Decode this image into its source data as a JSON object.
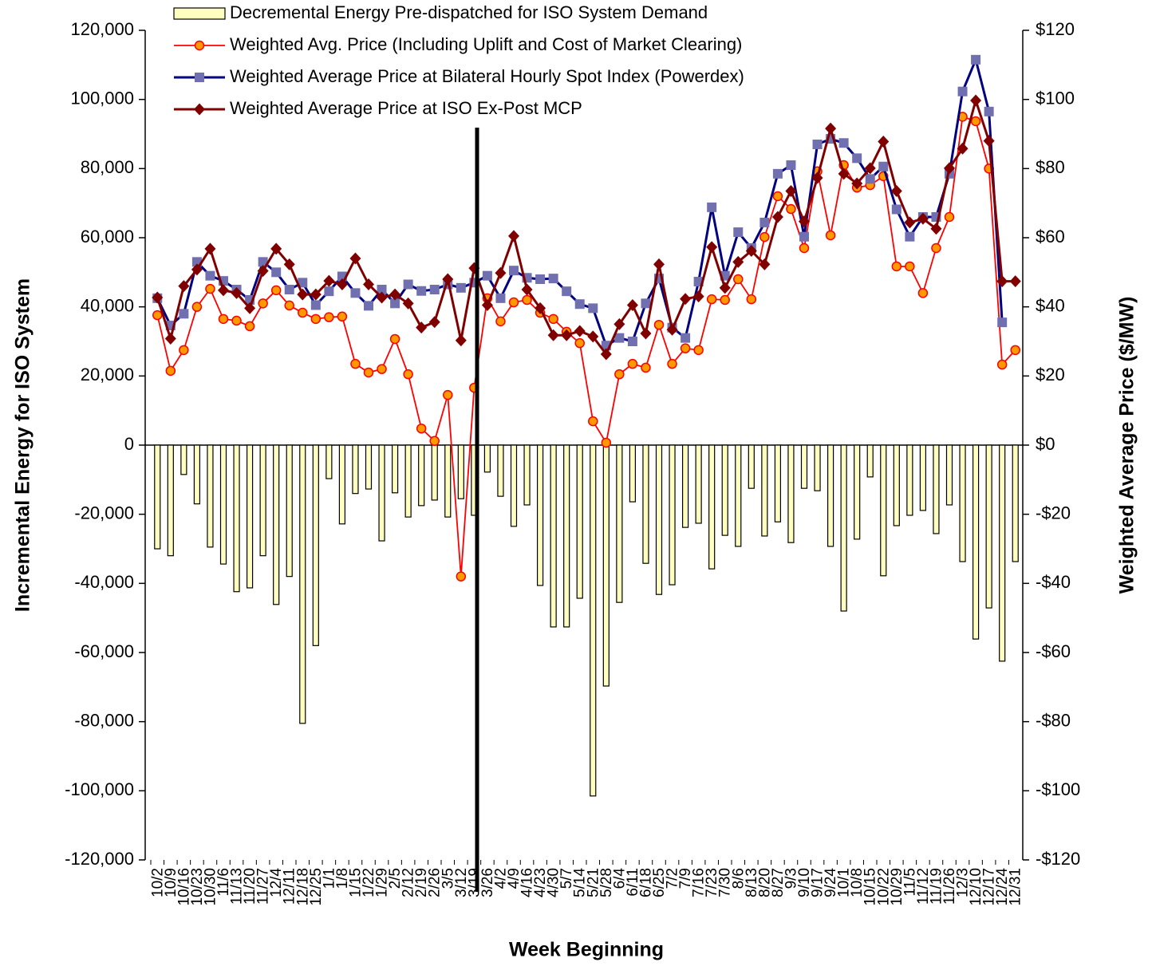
{
  "chart_data": {
    "type": "bar",
    "xlabel": "Week Beginning",
    "ylabel": "Incremental Energy for ISO System",
    "y2label": "Weighted Average Price ($/MW)",
    "categories": [
      "10/2",
      "10/9",
      "10/16",
      "10/23",
      "10/30",
      "11/6",
      "11/13",
      "11/20",
      "11/27",
      "12/4",
      "12/11",
      "12/18",
      "12/25",
      "1/1",
      "1/8",
      "1/15",
      "1/22",
      "1/29",
      "2/5",
      "2/12",
      "2/19",
      "2/26",
      "3/5",
      "3/12",
      "3/19",
      "3/26",
      "4/2",
      "4/9",
      "4/16",
      "4/23",
      "4/30",
      "5/7",
      "5/14",
      "5/21",
      "5/28",
      "6/4",
      "6/11",
      "6/18",
      "6/25",
      "7/2",
      "7/9",
      "7/16",
      "7/23",
      "7/30",
      "8/6",
      "8/13",
      "8/20",
      "8/27",
      "9/3",
      "9/10",
      "9/17",
      "9/24",
      "10/1",
      "10/8",
      "10/15",
      "10/22",
      "10/29",
      "11/5",
      "11/12",
      "11/19",
      "11/26",
      "12/3",
      "12/10",
      "12/17",
      "12/24",
      "12/31"
    ],
    "ylim": [
      -120000,
      120000
    ],
    "yticks": [
      {
        "value": 120000,
        "label": "120,000"
      },
      {
        "value": 100000,
        "label": "100,000"
      },
      {
        "value": 80000,
        "label": "80,000"
      },
      {
        "value": 60000,
        "label": "60,000"
      },
      {
        "value": 40000,
        "label": "40,000"
      },
      {
        "value": 20000,
        "label": "20,000"
      },
      0,
      {
        "value": -20000,
        "label": "-20,000"
      },
      {
        "value": -40000,
        "label": "-40,000"
      },
      {
        "value": -60000,
        "label": "-60,000"
      },
      {
        "value": -80000,
        "label": "-80,000"
      },
      {
        "value": -100000,
        "label": "-100,000"
      },
      {
        "value": -120000,
        "label": "-120,000"
      }
    ],
    "y2lim": [
      -120,
      120
    ],
    "y2ticks": [
      {
        "value": 120,
        "label": "$120"
      },
      {
        "value": 100,
        "label": "$100"
      },
      {
        "value": 80,
        "label": "$80"
      },
      {
        "value": 60,
        "label": "$60"
      },
      {
        "value": 40,
        "label": "$40"
      },
      {
        "value": 20,
        "label": "$20"
      },
      {
        "value": 0,
        "label": "$0"
      },
      {
        "value": -20,
        "label": "-$20"
      },
      {
        "value": -40,
        "label": "-$40"
      },
      {
        "value": -60,
        "label": "-$60"
      },
      {
        "value": -80,
        "label": "-$80"
      },
      {
        "value": -100,
        "label": "-$100"
      },
      {
        "value": -120,
        "label": "-$120"
      }
    ],
    "legend": "top-left",
    "series": [
      {
        "name": "Decremental Energy Pre-dispatched for ISO System Demand",
        "type": "bar",
        "color": "#ffffc0",
        "values": [
          -30000,
          -32000,
          -8500,
          -17000,
          -29500,
          -34400,
          -42400,
          -41300,
          -32000,
          -46100,
          -38000,
          -80500,
          -58000,
          -9700,
          -22800,
          -14000,
          -12700,
          -27700,
          -13800,
          -20800,
          -17500,
          -15900,
          -20800,
          -15500,
          -20300,
          -7800,
          -14800,
          -23500,
          -17300,
          -40600,
          -52600,
          -52600,
          -44300,
          -101500,
          -69700,
          -45500,
          -16400,
          -34200,
          -43200,
          -40400,
          -23800,
          -22600,
          -35800,
          -26100,
          -29300,
          -12500,
          -26300,
          -22200,
          -28200,
          -12500,
          -13200,
          -29300,
          -48000,
          -27200,
          -9200,
          -37800,
          -23300,
          -20300,
          -18900,
          -25600,
          -17300,
          -33700,
          -56100,
          -47100,
          -62500,
          -33700
        ]
      },
      {
        "name": "Weighted Avg. Price (Including Uplift and Cost of Market Clearing)",
        "type": "line",
        "marker": "circle",
        "axis": "y2",
        "color": "#ff0000",
        "marker_color": "#ff9900",
        "values": [
          37.6,
          21.5,
          27.5,
          40,
          45.2,
          36.5,
          36,
          34.4,
          41,
          44.8,
          40.4,
          38.3,
          36.5,
          37,
          37.2,
          23.5,
          21,
          22,
          30.7,
          20.5,
          4.8,
          1.2,
          14.5,
          -38,
          16.6,
          42.5,
          35.8,
          41.3,
          42,
          38.3,
          36.5,
          32.8,
          29.5,
          6.9,
          0.7,
          20.5,
          23.5,
          22.4,
          34.8,
          23.5,
          28,
          27.5,
          42.2,
          42,
          48,
          42.2,
          60.2,
          72,
          68.3,
          57,
          79.2,
          60.7,
          81,
          74.5,
          75.2,
          77.8,
          51.7,
          51.7,
          44,
          57,
          66,
          95,
          93.7,
          80,
          23.3,
          27.5
        ]
      },
      {
        "name": "Weighted Average Price at Bilateral Hourly Spot Index (Powerdex)",
        "type": "line",
        "marker": "square",
        "axis": "y2",
        "color": "#000080",
        "marker_color": "#7070b0",
        "values": [
          42.5,
          34.6,
          38,
          53,
          49,
          47.5,
          45,
          42,
          53,
          50,
          45,
          47,
          40.5,
          44.5,
          48.8,
          44,
          40.3,
          45,
          41,
          46.5,
          44.6,
          45,
          46.5,
          45.5,
          47,
          49,
          42.5,
          50.5,
          48.4,
          48,
          48.2,
          44.5,
          40.8,
          39.6,
          28.8,
          31,
          30,
          41,
          48.2,
          34,
          31,
          47.3,
          68.8,
          49,
          61.6,
          57,
          64.4,
          78.5,
          81,
          60.3,
          87,
          88.6,
          87.4,
          83,
          77,
          80.6,
          68.2,
          60.3,
          66,
          66,
          78.5,
          102.3,
          111.5,
          96.5,
          35.5,
          null
        ]
      },
      {
        "name": "Weighted Average Price at ISO Ex-Post MCP",
        "type": "line",
        "marker": "diamond",
        "axis": "y2",
        "color": "#800000",
        "marker_color": "#800000",
        "values": [
          42.7,
          30.8,
          46,
          50.8,
          56.8,
          44.8,
          44,
          39.6,
          50.4,
          56.8,
          52.3,
          43.6,
          43.6,
          47.5,
          46.5,
          54,
          46.5,
          42.7,
          43.6,
          41,
          34,
          35.6,
          48,
          30.3,
          51.2,
          40.5,
          49.8,
          60.5,
          45,
          39.6,
          31.8,
          31.8,
          33,
          31.4,
          26.3,
          35,
          40.5,
          32.3,
          52.3,
          33.4,
          42.3,
          43,
          57.3,
          45.5,
          53,
          56.2,
          52.3,
          66,
          73.5,
          64.7,
          77.3,
          91.6,
          78.5,
          75.7,
          80.1,
          87.8,
          73.5,
          64.4,
          65.5,
          62.6,
          80.1,
          85.8,
          99.7,
          88,
          47.4,
          47.4
        ]
      }
    ]
  }
}
